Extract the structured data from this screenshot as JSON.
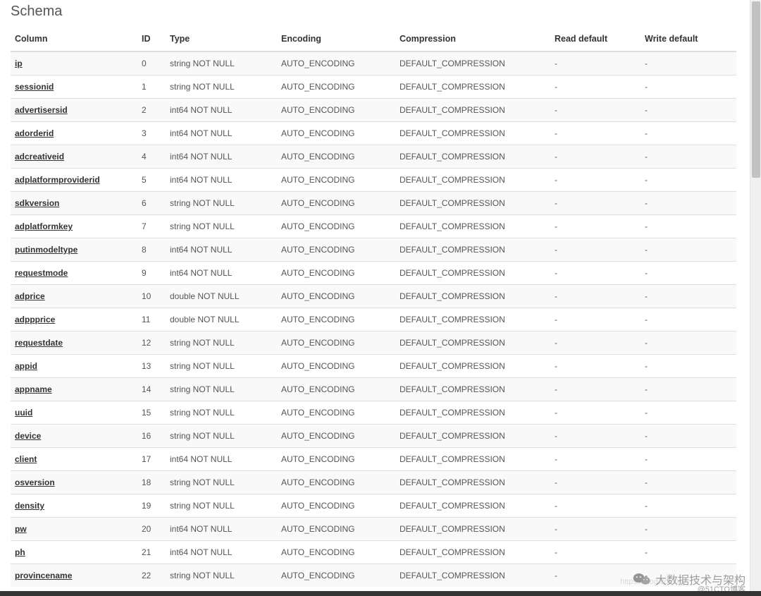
{
  "schema": {
    "title": "Schema",
    "headers": {
      "column": "Column",
      "id": "ID",
      "type": "Type",
      "encoding": "Encoding",
      "compression": "Compression",
      "read_default": "Read default",
      "write_default": "Write default"
    },
    "rows": [
      {
        "column": "ip",
        "id": "0",
        "type": "string NOT NULL",
        "encoding": "AUTO_ENCODING",
        "compression": "DEFAULT_COMPRESSION",
        "read_default": "-",
        "write_default": "-"
      },
      {
        "column": "sessionid",
        "id": "1",
        "type": "string NOT NULL",
        "encoding": "AUTO_ENCODING",
        "compression": "DEFAULT_COMPRESSION",
        "read_default": "-",
        "write_default": "-"
      },
      {
        "column": "advertisersid",
        "id": "2",
        "type": "int64 NOT NULL",
        "encoding": "AUTO_ENCODING",
        "compression": "DEFAULT_COMPRESSION",
        "read_default": "-",
        "write_default": "-"
      },
      {
        "column": "adorderid",
        "id": "3",
        "type": "int64 NOT NULL",
        "encoding": "AUTO_ENCODING",
        "compression": "DEFAULT_COMPRESSION",
        "read_default": "-",
        "write_default": "-"
      },
      {
        "column": "adcreativeid",
        "id": "4",
        "type": "int64 NOT NULL",
        "encoding": "AUTO_ENCODING",
        "compression": "DEFAULT_COMPRESSION",
        "read_default": "-",
        "write_default": "-"
      },
      {
        "column": "adplatformproviderid",
        "id": "5",
        "type": "int64 NOT NULL",
        "encoding": "AUTO_ENCODING",
        "compression": "DEFAULT_COMPRESSION",
        "read_default": "-",
        "write_default": "-"
      },
      {
        "column": "sdkversion",
        "id": "6",
        "type": "string NOT NULL",
        "encoding": "AUTO_ENCODING",
        "compression": "DEFAULT_COMPRESSION",
        "read_default": "-",
        "write_default": "-"
      },
      {
        "column": "adplatformkey",
        "id": "7",
        "type": "string NOT NULL",
        "encoding": "AUTO_ENCODING",
        "compression": "DEFAULT_COMPRESSION",
        "read_default": "-",
        "write_default": "-"
      },
      {
        "column": "putinmodeltype",
        "id": "8",
        "type": "int64 NOT NULL",
        "encoding": "AUTO_ENCODING",
        "compression": "DEFAULT_COMPRESSION",
        "read_default": "-",
        "write_default": "-"
      },
      {
        "column": "requestmode",
        "id": "9",
        "type": "int64 NOT NULL",
        "encoding": "AUTO_ENCODING",
        "compression": "DEFAULT_COMPRESSION",
        "read_default": "-",
        "write_default": "-"
      },
      {
        "column": "adprice",
        "id": "10",
        "type": "double NOT NULL",
        "encoding": "AUTO_ENCODING",
        "compression": "DEFAULT_COMPRESSION",
        "read_default": "-",
        "write_default": "-"
      },
      {
        "column": "adppprice",
        "id": "11",
        "type": "double NOT NULL",
        "encoding": "AUTO_ENCODING",
        "compression": "DEFAULT_COMPRESSION",
        "read_default": "-",
        "write_default": "-"
      },
      {
        "column": "requestdate",
        "id": "12",
        "type": "string NOT NULL",
        "encoding": "AUTO_ENCODING",
        "compression": "DEFAULT_COMPRESSION",
        "read_default": "-",
        "write_default": "-"
      },
      {
        "column": "appid",
        "id": "13",
        "type": "string NOT NULL",
        "encoding": "AUTO_ENCODING",
        "compression": "DEFAULT_COMPRESSION",
        "read_default": "-",
        "write_default": "-"
      },
      {
        "column": "appname",
        "id": "14",
        "type": "string NOT NULL",
        "encoding": "AUTO_ENCODING",
        "compression": "DEFAULT_COMPRESSION",
        "read_default": "-",
        "write_default": "-"
      },
      {
        "column": "uuid",
        "id": "15",
        "type": "string NOT NULL",
        "encoding": "AUTO_ENCODING",
        "compression": "DEFAULT_COMPRESSION",
        "read_default": "-",
        "write_default": "-"
      },
      {
        "column": "device",
        "id": "16",
        "type": "string NOT NULL",
        "encoding": "AUTO_ENCODING",
        "compression": "DEFAULT_COMPRESSION",
        "read_default": "-",
        "write_default": "-"
      },
      {
        "column": "client",
        "id": "17",
        "type": "int64 NOT NULL",
        "encoding": "AUTO_ENCODING",
        "compression": "DEFAULT_COMPRESSION",
        "read_default": "-",
        "write_default": "-"
      },
      {
        "column": "osversion",
        "id": "18",
        "type": "string NOT NULL",
        "encoding": "AUTO_ENCODING",
        "compression": "DEFAULT_COMPRESSION",
        "read_default": "-",
        "write_default": "-"
      },
      {
        "column": "density",
        "id": "19",
        "type": "string NOT NULL",
        "encoding": "AUTO_ENCODING",
        "compression": "DEFAULT_COMPRESSION",
        "read_default": "-",
        "write_default": "-"
      },
      {
        "column": "pw",
        "id": "20",
        "type": "int64 NOT NULL",
        "encoding": "AUTO_ENCODING",
        "compression": "DEFAULT_COMPRESSION",
        "read_default": "-",
        "write_default": "-"
      },
      {
        "column": "ph",
        "id": "21",
        "type": "int64 NOT NULL",
        "encoding": "AUTO_ENCODING",
        "compression": "DEFAULT_COMPRESSION",
        "read_default": "-",
        "write_default": "-"
      },
      {
        "column": "provincename",
        "id": "22",
        "type": "string NOT NULL",
        "encoding": "AUTO_ENCODING",
        "compression": "DEFAULT_COMPRESSION",
        "read_default": "-",
        "write_default": "-"
      }
    ]
  },
  "watermark": {
    "channel_text": "大数据技术与架构",
    "url_text": "https://blog.com.m",
    "cto_text": "@51CTO博客"
  },
  "styling": {
    "table_font_size": 12,
    "title_font_size": 20,
    "header_border_color": "#dddddd",
    "row_odd_bg": "#f9f9f9",
    "row_even_bg": "#ffffff",
    "text_color": "#555555",
    "header_text_color": "#333333"
  }
}
